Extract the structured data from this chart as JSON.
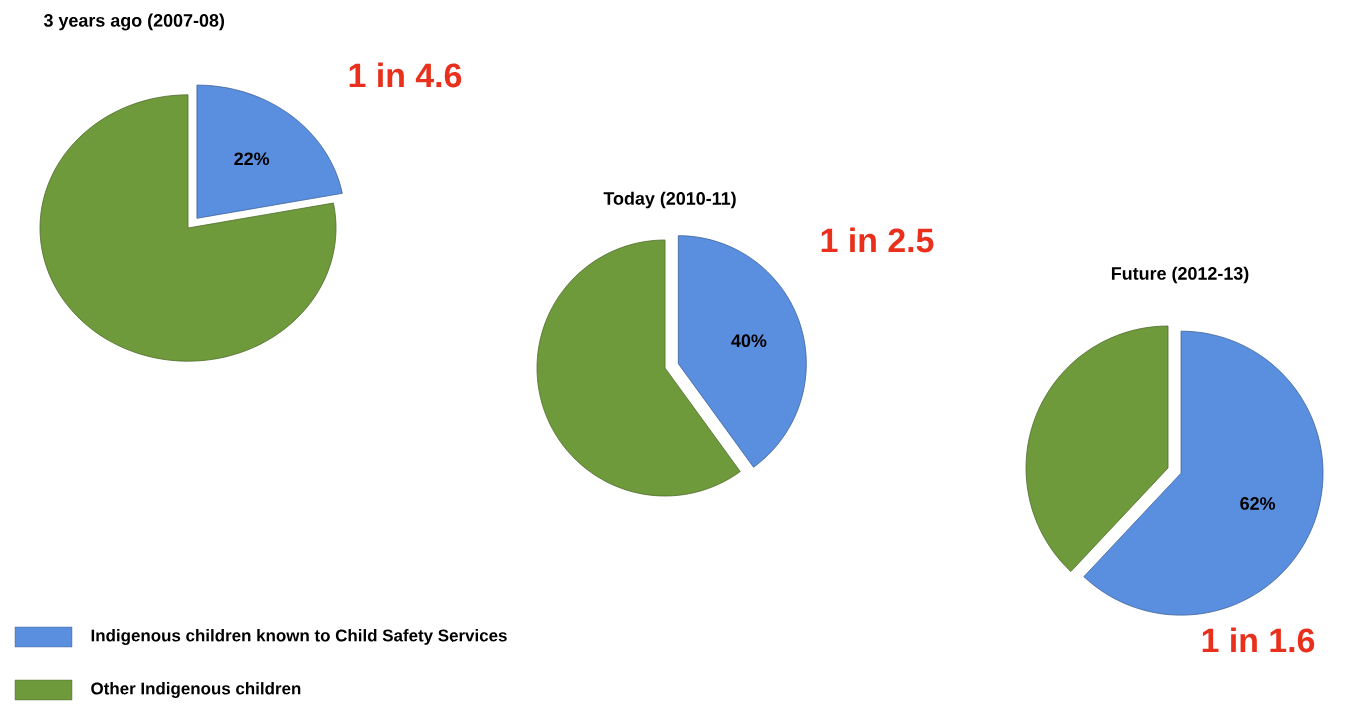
{
  "chart_data": [
    {
      "type": "pie",
      "title": "3 years ago (2007-08)",
      "categories": [
        "Indigenous children known to Child Safety Services",
        "Other Indigenous children"
      ],
      "values": [
        22,
        78
      ],
      "colors": [
        "#5a8ede",
        "#6f9a3c"
      ],
      "value_labels": [
        "22%",
        null
      ],
      "legend": "bottom",
      "annotations": [
        "1 in 4.6"
      ]
    },
    {
      "type": "pie",
      "title": "Today (2010-11)",
      "categories": [
        null,
        null
      ],
      "values": [
        40,
        60
      ],
      "colors": [
        "#5a8ede",
        "#6f9a3c"
      ],
      "value_labels": [
        "40%",
        null
      ],
      "annotations": [
        "1 in 2.5"
      ]
    },
    {
      "type": "pie",
      "title": "Future (2012-13)",
      "categories": [
        null,
        null
      ],
      "values": [
        62,
        38
      ],
      "colors": [
        "#5a8ede",
        "#6f9a3c"
      ],
      "value_labels": [
        "62%",
        null
      ],
      "annotations": [
        "1 in 1.6"
      ]
    }
  ]
}
